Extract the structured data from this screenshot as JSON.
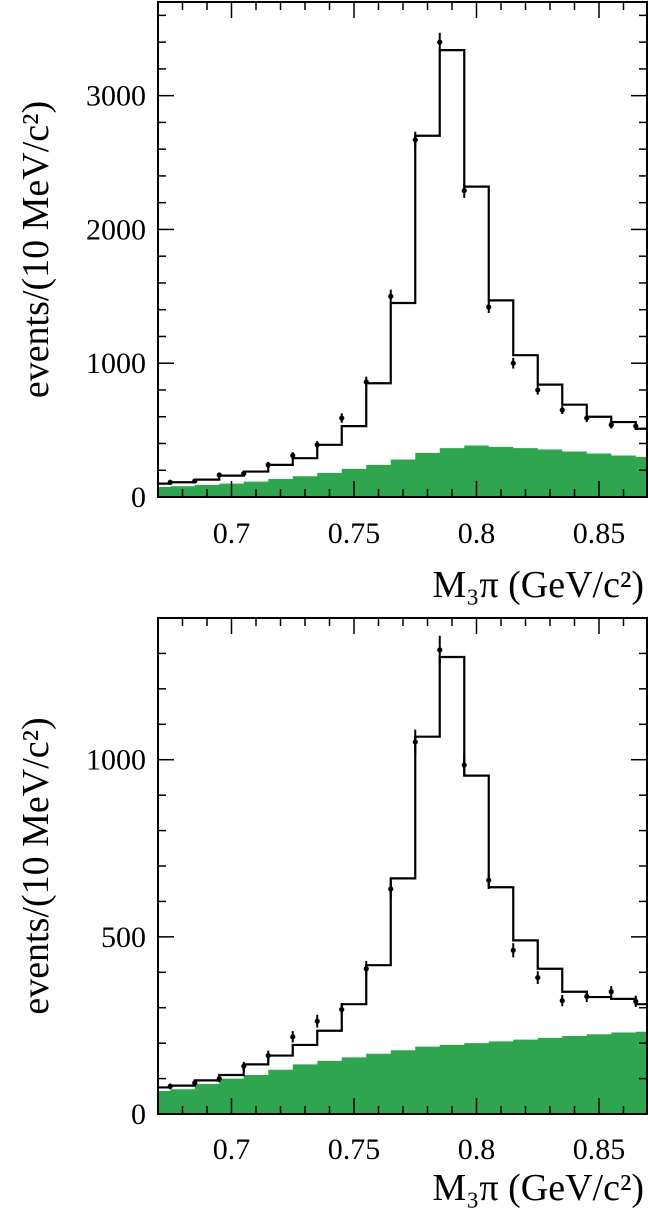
{
  "chart_data": [
    {
      "type": "histogram",
      "ylabel": "events/(10 MeV/c²)",
      "xlabel": "M₃π (GeV/c²)",
      "xlim": [
        0.67,
        0.87
      ],
      "ylim": [
        0,
        3700
      ],
      "xticks": [
        0.7,
        0.75,
        0.8,
        0.85
      ],
      "xtick_labels": [
        "0.7",
        "0.75",
        "0.8",
        "0.85"
      ],
      "yticks": [
        0,
        1000,
        2000,
        3000
      ],
      "ytick_labels": [
        "0",
        "1000",
        "2000",
        "3000"
      ],
      "bin_edges": [
        0.67,
        0.675,
        0.685,
        0.695,
        0.705,
        0.715,
        0.725,
        0.735,
        0.745,
        0.755,
        0.765,
        0.775,
        0.785,
        0.795,
        0.805,
        0.815,
        0.825,
        0.835,
        0.845,
        0.855,
        0.865,
        0.87
      ],
      "fit": [
        100,
        110,
        130,
        160,
        190,
        240,
        290,
        390,
        530,
        850,
        1450,
        2700,
        3340,
        2320,
        1470,
        1060,
        840,
        690,
        600,
        560,
        510,
        510
      ],
      "background": [
        75,
        80,
        90,
        100,
        115,
        135,
        155,
        180,
        210,
        240,
        280,
        330,
        365,
        385,
        375,
        365,
        355,
        340,
        325,
        310,
        300,
        300
      ],
      "data_x": [
        0.675,
        0.685,
        0.695,
        0.705,
        0.715,
        0.725,
        0.735,
        0.745,
        0.755,
        0.765,
        0.775,
        0.785,
        0.795,
        0.805,
        0.815,
        0.825,
        0.835,
        0.845,
        0.855,
        0.865
      ],
      "data_y": [
        110,
        120,
        165,
        175,
        240,
        310,
        390,
        590,
        860,
        1500,
        2670,
        3400,
        2290,
        1420,
        1000,
        800,
        650,
        590,
        540,
        530
      ],
      "data_err": [
        15,
        15,
        18,
        18,
        22,
        25,
        28,
        35,
        40,
        50,
        60,
        70,
        55,
        45,
        40,
        35,
        30,
        30,
        28,
        28
      ],
      "fit_color": "#000000",
      "background_color": "#2fa550",
      "point_color": "#000000"
    },
    {
      "type": "histogram",
      "ylabel": "events/(10 MeV/c²)",
      "xlabel": "M₃π (GeV/c²)",
      "xlim": [
        0.67,
        0.87
      ],
      "ylim": [
        0,
        1400
      ],
      "xticks": [
        0.7,
        0.75,
        0.8,
        0.85
      ],
      "xtick_labels": [
        "0.7",
        "0.75",
        "0.8",
        "0.85"
      ],
      "yticks": [
        0,
        500,
        1000
      ],
      "ytick_labels": [
        "0",
        "500",
        "1000"
      ],
      "bin_edges": [
        0.67,
        0.675,
        0.685,
        0.695,
        0.705,
        0.715,
        0.725,
        0.735,
        0.745,
        0.755,
        0.765,
        0.775,
        0.785,
        0.795,
        0.805,
        0.815,
        0.825,
        0.835,
        0.845,
        0.855,
        0.865,
        0.87
      ],
      "fit": [
        75,
        80,
        95,
        110,
        140,
        165,
        195,
        235,
        310,
        420,
        665,
        1065,
        1290,
        955,
        640,
        490,
        410,
        345,
        330,
        325,
        310,
        310
      ],
      "background": [
        65,
        70,
        85,
        100,
        110,
        125,
        140,
        150,
        160,
        170,
        180,
        190,
        195,
        200,
        205,
        210,
        215,
        220,
        225,
        230,
        232,
        232
      ],
      "data_x": [
        0.675,
        0.685,
        0.695,
        0.705,
        0.715,
        0.725,
        0.735,
        0.745,
        0.755,
        0.765,
        0.775,
        0.785,
        0.795,
        0.805,
        0.815,
        0.825,
        0.835,
        0.845,
        0.855,
        0.865
      ],
      "data_y": [
        78,
        88,
        100,
        135,
        165,
        218,
        262,
        295,
        410,
        635,
        1050,
        1310,
        985,
        660,
        462,
        385,
        320,
        332,
        345,
        318
      ],
      "data_err": [
        8,
        8,
        10,
        12,
        14,
        16,
        18,
        18,
        22,
        28,
        35,
        40,
        32,
        25,
        20,
        18,
        16,
        16,
        16,
        16
      ],
      "fit_color": "#000000",
      "background_color": "#2fa550",
      "point_color": "#000000"
    }
  ]
}
